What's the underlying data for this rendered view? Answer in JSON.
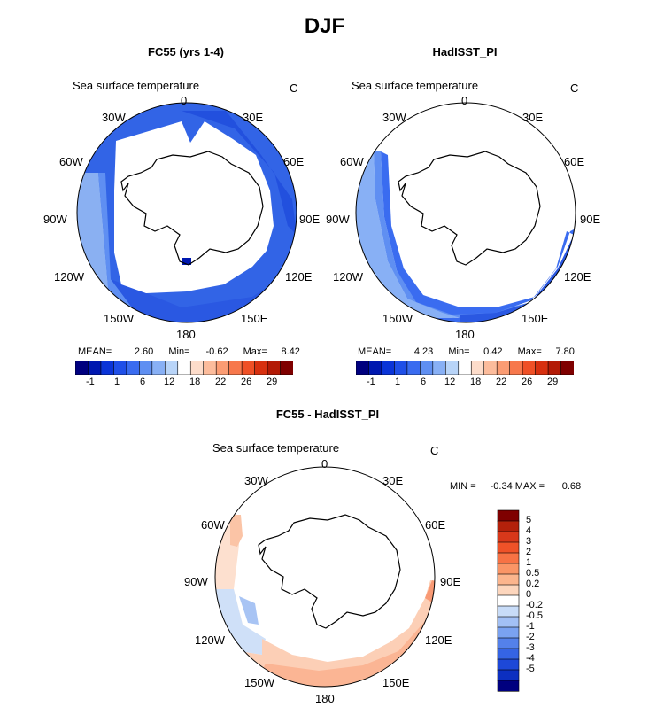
{
  "figure_title": "DJF",
  "panels": [
    {
      "title": "FC55 (yrs 1-4)",
      "field": "Sea surface temperature",
      "units": "C",
      "stats": {
        "mean_label": "MEAN=",
        "mean": "2.60",
        "min_label": "Min=",
        "min": "-0.62",
        "max_label": "Max=",
        "max": "8.42"
      },
      "lon_labels": {
        "n": "0",
        "nne": "30E",
        "ene": "60E",
        "e": "90E",
        "ese": "120E",
        "sse": "150E",
        "s": "180",
        "ssw": "150W",
        "wsw": "120W",
        "w": "90W",
        "wnw": "60W",
        "nnw": "30W"
      }
    },
    {
      "title": "HadISST_PI",
      "field": "Sea surface temperature",
      "units": "C",
      "stats": {
        "mean_label": "MEAN=",
        "mean": "4.23",
        "min_label": "Min=",
        "min": "0.42",
        "max_label": "Max=",
        "max": "7.80"
      },
      "lon_labels": {
        "n": "0",
        "nne": "30E",
        "ene": "60E",
        "e": "90E",
        "ese": "120E",
        "sse": "150E",
        "s": "180",
        "ssw": "150W",
        "wsw": "120W",
        "w": "90W",
        "wnw": "60W",
        "nnw": "30W"
      }
    }
  ],
  "abs_colorbar": {
    "colors": [
      "#00007f",
      "#0018b0",
      "#0a34d8",
      "#1f4fe8",
      "#3a6cf0",
      "#5f8ff2",
      "#88b0f5",
      "#b8d4f8",
      "#ffffff",
      "#fddcca",
      "#fcbc9c",
      "#fb9c73",
      "#f7784c",
      "#ef5026",
      "#d7300f",
      "#b31a05",
      "#7f0000"
    ],
    "labels": [
      "-1",
      "1",
      "6",
      "12",
      "18",
      "22",
      "26",
      "29"
    ]
  },
  "diff_panel": {
    "title": "FC55 - HadISST_PI",
    "field": "Sea surface temperature",
    "units": "C",
    "stats": {
      "min_label": "MIN =",
      "min": "-0.34",
      "max_label": "MAX =",
      "max": "0.68"
    },
    "lon_labels": {
      "n": "0",
      "nne": "30E",
      "ene": "60E",
      "e": "90E",
      "ese": "120E",
      "sse": "150E",
      "s": "180",
      "ssw": "150W",
      "wsw": "120W",
      "w": "90W",
      "wnw": "60W",
      "nnw": "30W"
    }
  },
  "diff_colorbar": {
    "colors": [
      "#7f0000",
      "#b3210b",
      "#d8381a",
      "#ef5228",
      "#f77244",
      "#fa9566",
      "#fcb58d",
      "#fdd6bd",
      "#ffffff",
      "#c8dcf8",
      "#a2c0f5",
      "#7aa2f1",
      "#5481ea",
      "#3564e4",
      "#1d48d8",
      "#0c2fc0",
      "#00007f"
    ],
    "labels": [
      "5",
      "4",
      "3",
      "2",
      "1",
      "0.5",
      "0.2",
      "0",
      "-0.2",
      "-0.5",
      "-1",
      "-2",
      "-3",
      "-4",
      "-5"
    ]
  }
}
